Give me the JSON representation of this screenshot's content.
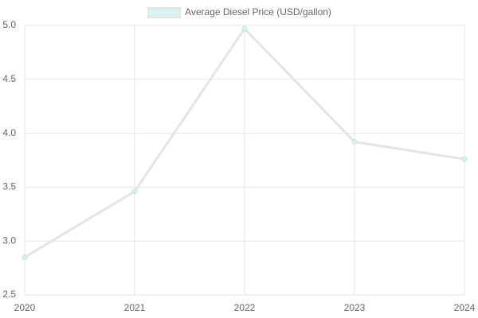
{
  "chart_data": {
    "type": "line",
    "categories": [
      "2020",
      "2021",
      "2022",
      "2023",
      "2024"
    ],
    "series": [
      {
        "name": "Average Diesel Price (USD/gallon)",
        "color": "#e4e4e4",
        "fill": "#d8f3f0",
        "values": [
          2.85,
          3.46,
          4.97,
          3.92,
          3.76
        ]
      }
    ],
    "ylim": [
      2.5,
      5.0
    ],
    "yticks": [
      2.5,
      {
        "value": 3.0,
        "label": "3.0"
      },
      3.5,
      {
        "value": 4.0,
        "label": "4.0"
      },
      4.5,
      {
        "value": 5.0,
        "label": "5.0"
      }
    ],
    "grid": true,
    "legend": "top"
  }
}
